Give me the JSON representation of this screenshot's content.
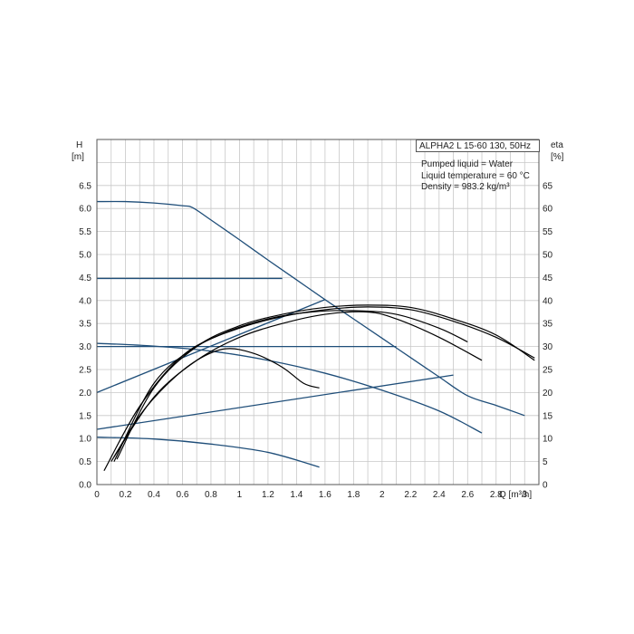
{
  "chart_data": {
    "type": "line",
    "title": "ALPHA2 L 15-60 130, 50Hz",
    "notes": [
      "Pumped liquid = Water",
      "Liquid temperature = 60 °C",
      "Density = 983.2 kg/m³"
    ],
    "ylabel_left": "H",
    "ylabel_left_unit": "[m]",
    "ylabel_right": "eta",
    "ylabel_right_unit": "[%]",
    "xlabel": "Q [m³/h]",
    "xlim": [
      0,
      3.1
    ],
    "ylim": [
      0,
      7.5
    ],
    "ylim_right": [
      0,
      75
    ],
    "x_ticks": [
      0,
      0.2,
      0.4,
      0.6,
      0.8,
      1.0,
      1.2,
      1.4,
      1.6,
      1.8,
      2.0,
      2.2,
      2.4,
      2.6,
      2.8,
      3.0
    ],
    "y_ticks": [
      0.0,
      0.5,
      1.0,
      1.5,
      2.0,
      2.5,
      3.0,
      3.5,
      4.0,
      4.5,
      5.0,
      5.5,
      6.0,
      6.5
    ],
    "y_ticks_right": [
      0,
      5,
      10,
      15,
      20,
      25,
      30,
      35,
      40,
      45,
      50,
      55,
      60,
      65
    ],
    "grid": true,
    "colors": {
      "head": "#1f4e79",
      "efficiency": "#000000",
      "grid": "#c8c8c8"
    },
    "series": [
      {
        "kind": "head",
        "points": [
          [
            0,
            6.15
          ],
          [
            0.2,
            6.15
          ],
          [
            0.4,
            6.12
          ],
          [
            0.6,
            6.06
          ],
          [
            0.67,
            6.02
          ],
          [
            0.8,
            5.75
          ],
          [
            1.0,
            5.32
          ],
          [
            1.2,
            4.88
          ],
          [
            1.4,
            4.45
          ],
          [
            1.6,
            4.02
          ],
          [
            1.8,
            3.6
          ],
          [
            2.0,
            3.18
          ],
          [
            2.2,
            2.76
          ],
          [
            2.4,
            2.34
          ],
          [
            2.6,
            1.93
          ],
          [
            2.8,
            1.72
          ],
          [
            3.0,
            1.5
          ]
        ]
      },
      {
        "kind": "head",
        "points": [
          [
            0,
            4.48
          ],
          [
            1.3,
            4.48
          ]
        ]
      },
      {
        "kind": "head",
        "points": [
          [
            0,
            3.0
          ],
          [
            2.1,
            3.0
          ]
        ]
      },
      {
        "kind": "head",
        "points": [
          [
            0,
            3.07
          ],
          [
            0.4,
            3.01
          ],
          [
            0.8,
            2.9
          ],
          [
            1.2,
            2.7
          ],
          [
            1.6,
            2.42
          ],
          [
            2.0,
            2.05
          ],
          [
            2.4,
            1.6
          ],
          [
            2.7,
            1.12
          ]
        ]
      },
      {
        "kind": "head",
        "points": [
          [
            0,
            1.03
          ],
          [
            0.4,
            0.99
          ],
          [
            0.8,
            0.88
          ],
          [
            1.2,
            0.7
          ],
          [
            1.56,
            0.38
          ]
        ]
      },
      {
        "kind": "control",
        "points": [
          [
            0,
            2.0
          ],
          [
            1.6,
            4.02
          ]
        ]
      },
      {
        "kind": "control",
        "points": [
          [
            0,
            1.2
          ],
          [
            2.5,
            2.38
          ]
        ]
      },
      {
        "kind": "efficiency",
        "points": [
          [
            0.1,
            5
          ],
          [
            0.3,
            15
          ],
          [
            0.5,
            22
          ],
          [
            0.7,
            27
          ],
          [
            0.9,
            29.5
          ],
          [
            1.1,
            28.5
          ],
          [
            1.3,
            25.5
          ],
          [
            1.45,
            22
          ],
          [
            1.56,
            21
          ]
        ]
      },
      {
        "kind": "efficiency",
        "points": [
          [
            0.12,
            6
          ],
          [
            0.4,
            19
          ],
          [
            0.7,
            27
          ],
          [
            1.0,
            32
          ],
          [
            1.3,
            35
          ],
          [
            1.6,
            37
          ],
          [
            1.9,
            37.5
          ],
          [
            2.1,
            36
          ],
          [
            2.4,
            32
          ],
          [
            2.7,
            27
          ]
        ]
      },
      {
        "kind": "efficiency",
        "points": [
          [
            0.05,
            3
          ],
          [
            0.3,
            17
          ],
          [
            0.6,
            28
          ],
          [
            0.9,
            33
          ],
          [
            1.2,
            36
          ],
          [
            1.5,
            37.5
          ],
          [
            1.8,
            37.8
          ],
          [
            2.1,
            37
          ],
          [
            2.4,
            34
          ],
          [
            2.6,
            31
          ]
        ]
      },
      {
        "kind": "efficiency",
        "points": [
          [
            0.12,
            5
          ],
          [
            0.4,
            22
          ],
          [
            0.7,
            30
          ],
          [
            1.0,
            34
          ],
          [
            1.3,
            36.5
          ],
          [
            1.6,
            38
          ],
          [
            1.9,
            38.6
          ],
          [
            2.2,
            38
          ],
          [
            2.5,
            35.5
          ],
          [
            2.8,
            32
          ],
          [
            3.07,
            27.5
          ]
        ]
      },
      {
        "kind": "efficiency",
        "points": [
          [
            0.14,
            5.5
          ],
          [
            0.4,
            21
          ],
          [
            0.7,
            30
          ],
          [
            1.0,
            34.5
          ],
          [
            1.3,
            37
          ],
          [
            1.6,
            38.5
          ],
          [
            1.9,
            39
          ],
          [
            2.2,
            38.5
          ],
          [
            2.5,
            36
          ],
          [
            2.8,
            32.5
          ],
          [
            3.07,
            27
          ]
        ]
      }
    ]
  }
}
